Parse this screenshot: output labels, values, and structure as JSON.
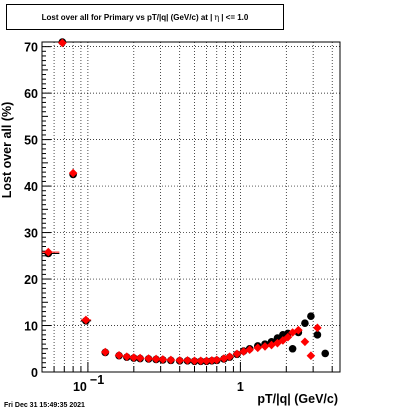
{
  "title": {
    "prefix": "Lost over all for Primary vs pT/|q| (GeV/c) at |",
    "eta": "η",
    "suffix": "| <= 1.0"
  },
  "footer_timestamp": "Fri Dec 31 15:49:35 2021",
  "chart_data": {
    "type": "scatter",
    "xlabel": "pT/|q| (GeV/c)",
    "ylabel": "Lost over all (%)",
    "x_scale": "log",
    "xlim": [
      0.05,
      4.5
    ],
    "ylim": [
      0,
      71
    ],
    "grid": true,
    "x_tick_labels": [
      {
        "value": 0.1,
        "label": "10",
        "exp": "−1"
      },
      {
        "value": 1,
        "label": "1",
        "exp": ""
      }
    ],
    "y_ticks": [
      0,
      10,
      20,
      30,
      40,
      50,
      60,
      70
    ],
    "series": [
      {
        "color": "#000000",
        "marker": "circle",
        "points": [
          {
            "x": 0.055,
            "y": 25.5,
            "xerr": [
              0.05,
              0.065
            ]
          },
          {
            "x": 0.068,
            "y": 71.0
          },
          {
            "x": 0.08,
            "y": 42.5
          },
          {
            "x": 0.097,
            "y": 11.0,
            "xerr": [
              0.09,
              0.105
            ]
          },
          {
            "x": 0.13,
            "y": 4.2
          },
          {
            "x": 0.16,
            "y": 3.5
          },
          {
            "x": 0.18,
            "y": 3.2
          },
          {
            "x": 0.2,
            "y": 3.0
          },
          {
            "x": 0.22,
            "y": 2.9
          },
          {
            "x": 0.25,
            "y": 2.8
          },
          {
            "x": 0.28,
            "y": 2.7
          },
          {
            "x": 0.31,
            "y": 2.6
          },
          {
            "x": 0.35,
            "y": 2.5
          },
          {
            "x": 0.4,
            "y": 2.4
          },
          {
            "x": 0.45,
            "y": 2.4
          },
          {
            "x": 0.5,
            "y": 2.3
          },
          {
            "x": 0.55,
            "y": 2.3
          },
          {
            "x": 0.6,
            "y": 2.3
          },
          {
            "x": 0.65,
            "y": 2.4
          },
          {
            "x": 0.7,
            "y": 2.5
          },
          {
            "x": 0.78,
            "y": 2.8
          },
          {
            "x": 0.85,
            "y": 3.2
          },
          {
            "x": 0.95,
            "y": 3.8
          },
          {
            "x": 1.05,
            "y": 4.5
          },
          {
            "x": 1.15,
            "y": 5.0
          },
          {
            "x": 1.3,
            "y": 5.6
          },
          {
            "x": 1.45,
            "y": 6.0
          },
          {
            "x": 1.6,
            "y": 6.5
          },
          {
            "x": 1.75,
            "y": 7.3
          },
          {
            "x": 1.9,
            "y": 8.0
          },
          {
            "x": 2.05,
            "y": 8.3
          },
          {
            "x": 2.2,
            "y": 5.0
          },
          {
            "x": 2.4,
            "y": 8.5
          },
          {
            "x": 2.65,
            "y": 10.5
          },
          {
            "x": 2.9,
            "y": 12.0
          },
          {
            "x": 3.2,
            "y": 8.0
          },
          {
            "x": 3.6,
            "y": 4.0
          }
        ]
      },
      {
        "color": "#ff0000",
        "marker": "diamond",
        "points": [
          {
            "x": 0.055,
            "y": 25.8,
            "xerr": [
              0.05,
              0.065
            ]
          },
          {
            "x": 0.068,
            "y": 70.8
          },
          {
            "x": 0.08,
            "y": 42.8
          },
          {
            "x": 0.097,
            "y": 11.2,
            "xerr": [
              0.09,
              0.105
            ]
          },
          {
            "x": 0.13,
            "y": 4.3
          },
          {
            "x": 0.16,
            "y": 3.6
          },
          {
            "x": 0.18,
            "y": 3.3
          },
          {
            "x": 0.2,
            "y": 3.1
          },
          {
            "x": 0.22,
            "y": 3.0
          },
          {
            "x": 0.25,
            "y": 2.9
          },
          {
            "x": 0.28,
            "y": 2.8
          },
          {
            "x": 0.31,
            "y": 2.7
          },
          {
            "x": 0.35,
            "y": 2.6
          },
          {
            "x": 0.4,
            "y": 2.5
          },
          {
            "x": 0.45,
            "y": 2.5
          },
          {
            "x": 0.5,
            "y": 2.4
          },
          {
            "x": 0.55,
            "y": 2.4
          },
          {
            "x": 0.6,
            "y": 2.4
          },
          {
            "x": 0.65,
            "y": 2.5
          },
          {
            "x": 0.7,
            "y": 2.6
          },
          {
            "x": 0.78,
            "y": 2.9
          },
          {
            "x": 0.85,
            "y": 3.3
          },
          {
            "x": 0.95,
            "y": 3.9
          },
          {
            "x": 1.05,
            "y": 4.4
          },
          {
            "x": 1.15,
            "y": 4.8
          },
          {
            "x": 1.3,
            "y": 5.2
          },
          {
            "x": 1.45,
            "y": 5.5
          },
          {
            "x": 1.6,
            "y": 5.8
          },
          {
            "x": 1.75,
            "y": 6.2
          },
          {
            "x": 1.9,
            "y": 6.8
          },
          {
            "x": 2.05,
            "y": 7.5
          },
          {
            "x": 2.2,
            "y": 8.5
          },
          {
            "x": 2.4,
            "y": 9.0
          },
          {
            "x": 2.65,
            "y": 6.5
          },
          {
            "x": 2.9,
            "y": 3.5
          },
          {
            "x": 3.2,
            "y": 9.5
          }
        ]
      }
    ]
  }
}
